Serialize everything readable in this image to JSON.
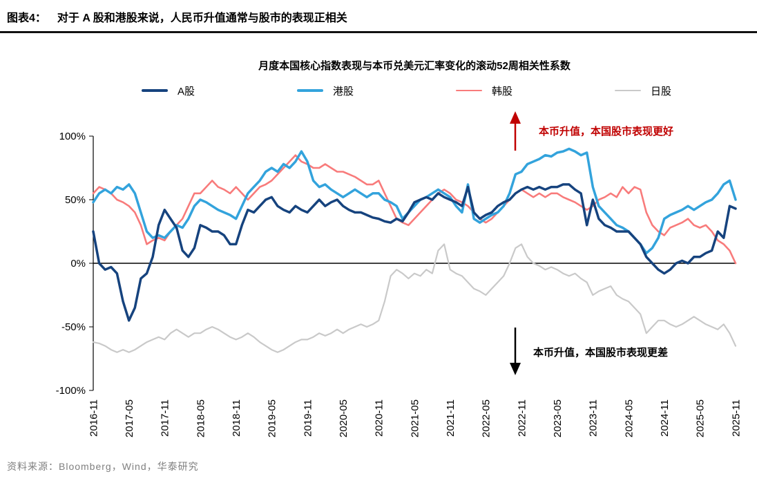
{
  "header": {
    "figure_label": "图表4：",
    "title": "对于 A 股和港股来说，人民币升值通常与股市的表现正相关"
  },
  "footer": {
    "source": "资料来源：Bloomberg，Wind，华泰研究"
  },
  "chart_data": {
    "type": "line",
    "title": "月度本国核心指数表现与本币兑美元汇率变化的滚动52周相关性系数",
    "ylabel": "滚动52周相关性系数 (%)",
    "unit": "%",
    "ylim": [
      -100,
      100
    ],
    "y_ticks": [
      100,
      50,
      0,
      -50,
      -100
    ],
    "grid": false,
    "legend_position": "top",
    "x_start": "2016-11",
    "x_end": "2025-11",
    "x_frequency": "monthly",
    "x_tick_labels": [
      "2016-11",
      "2017-05",
      "2017-11",
      "2018-05",
      "2018-11",
      "2019-05",
      "2019-11",
      "2020-05",
      "2020-11",
      "2021-05",
      "2021-11",
      "2022-05",
      "2022-11",
      "2023-05",
      "2023-11",
      "2024-05",
      "2024-11",
      "2025-05",
      "2025-11"
    ],
    "series": [
      {
        "name": "A股",
        "color": "#16437E",
        "width": 3.5,
        "values": [
          25,
          0,
          -5,
          -3,
          -8,
          -30,
          -45,
          -35,
          -12,
          -8,
          5,
          30,
          42,
          35,
          28,
          10,
          5,
          12,
          30,
          28,
          25,
          25,
          22,
          15,
          15,
          30,
          42,
          40,
          45,
          50,
          52,
          45,
          42,
          40,
          45,
          42,
          40,
          45,
          50,
          45,
          48,
          50,
          45,
          42,
          40,
          40,
          38,
          36,
          35,
          33,
          32,
          35,
          33,
          40,
          48,
          50,
          52,
          50,
          55,
          52,
          50,
          48,
          45,
          60,
          40,
          35,
          38,
          40,
          45,
          48,
          50,
          55,
          58,
          60,
          58,
          60,
          58,
          60,
          60,
          62,
          62,
          58,
          55,
          30,
          50,
          35,
          30,
          28,
          25,
          25,
          25,
          20,
          15,
          5,
          0,
          -5,
          -8,
          -5,
          0,
          2,
          0,
          5,
          5,
          8,
          10,
          25,
          20,
          45,
          43
        ]
      },
      {
        "name": "港股",
        "color": "#33A3DC",
        "width": 3.5,
        "values": [
          48,
          55,
          58,
          55,
          60,
          58,
          62,
          55,
          40,
          25,
          20,
          22,
          20,
          25,
          30,
          28,
          35,
          45,
          50,
          48,
          45,
          42,
          40,
          38,
          35,
          45,
          55,
          60,
          65,
          72,
          75,
          72,
          78,
          75,
          80,
          88,
          80,
          65,
          60,
          62,
          58,
          55,
          52,
          55,
          58,
          55,
          52,
          55,
          55,
          50,
          48,
          45,
          35,
          40,
          45,
          50,
          52,
          55,
          58,
          55,
          52,
          45,
          40,
          62,
          35,
          32,
          35,
          38,
          40,
          45,
          55,
          70,
          72,
          78,
          80,
          82,
          85,
          84,
          87,
          88,
          90,
          88,
          85,
          87,
          60,
          45,
          40,
          35,
          30,
          28,
          25,
          20,
          15,
          8,
          12,
          20,
          35,
          38,
          40,
          42,
          45,
          42,
          45,
          48,
          50,
          55,
          62,
          65,
          50
        ]
      },
      {
        "name": "韩股",
        "color": "#F87B7B",
        "width": 2.6,
        "values": [
          55,
          60,
          58,
          55,
          50,
          48,
          45,
          40,
          30,
          15,
          18,
          20,
          18,
          25,
          30,
          35,
          45,
          55,
          55,
          60,
          65,
          60,
          58,
          55,
          60,
          55,
          50,
          55,
          60,
          62,
          65,
          70,
          75,
          80,
          85,
          80,
          78,
          75,
          75,
          78,
          75,
          72,
          72,
          70,
          68,
          65,
          62,
          62,
          65,
          55,
          45,
          35,
          32,
          30,
          35,
          40,
          45,
          50,
          55,
          58,
          55,
          50,
          48,
          45,
          40,
          35,
          32,
          35,
          40,
          45,
          50,
          55,
          58,
          55,
          52,
          55,
          52,
          55,
          55,
          52,
          50,
          48,
          45,
          42,
          45,
          50,
          52,
          55,
          52,
          60,
          55,
          60,
          58,
          40,
          30,
          25,
          22,
          28,
          30,
          32,
          35,
          30,
          28,
          30,
          25,
          18,
          15,
          10,
          0
        ]
      },
      {
        "name": "日股",
        "color": "#C9C9C9",
        "width": 2.2,
        "values": [
          -62,
          -63,
          -65,
          -68,
          -70,
          -68,
          -70,
          -68,
          -65,
          -62,
          -60,
          -58,
          -60,
          -55,
          -52,
          -55,
          -58,
          -55,
          -55,
          -52,
          -50,
          -52,
          -55,
          -58,
          -60,
          -58,
          -55,
          -58,
          -62,
          -65,
          -68,
          -70,
          -68,
          -65,
          -62,
          -60,
          -60,
          -58,
          -55,
          -57,
          -55,
          -52,
          -55,
          -52,
          -50,
          -48,
          -50,
          -48,
          -45,
          -30,
          -10,
          -5,
          -8,
          -12,
          -8,
          -10,
          -5,
          -8,
          10,
          15,
          -5,
          -8,
          -10,
          -15,
          -20,
          -22,
          -25,
          -20,
          -15,
          -10,
          0,
          12,
          15,
          5,
          0,
          -2,
          -5,
          -3,
          -5,
          -8,
          -10,
          -8,
          -12,
          -15,
          -25,
          -22,
          -20,
          -18,
          -25,
          -28,
          -30,
          -35,
          -40,
          -55,
          -50,
          -45,
          -45,
          -48,
          -50,
          -48,
          -45,
          -42,
          -45,
          -48,
          -50,
          -52,
          -48,
          -55,
          -65
        ]
      }
    ],
    "annotations": [
      {
        "direction": "up",
        "color": "#C00000",
        "text": "本币升值，本国股市表现更好"
      },
      {
        "direction": "down",
        "color": "#000000",
        "text": "本币升值，本国股市表现更差"
      }
    ]
  }
}
